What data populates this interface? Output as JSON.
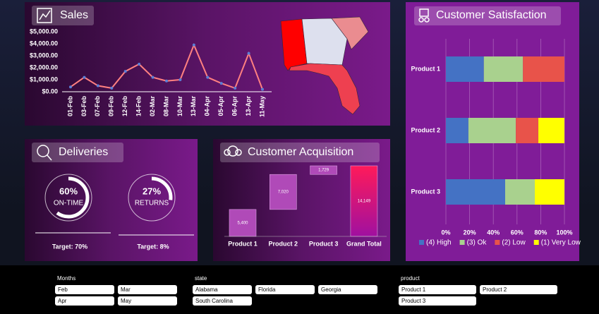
{
  "chart_data": [
    {
      "type": "line",
      "title": "Sales",
      "categories": [
        "01-Feb",
        "03-Feb",
        "07-Feb",
        "09-Feb",
        "12-Feb",
        "14-Feb",
        "02-Mar",
        "08-Mar",
        "10-Mar",
        "13-Mar",
        "04-Apr",
        "05-Apr",
        "06-Apr",
        "13-Apr",
        "11-May"
      ],
      "values": [
        400,
        1200,
        500,
        300,
        1700,
        2300,
        1200,
        900,
        1000,
        3900,
        1200,
        700,
        300,
        3200,
        200
      ],
      "color": "#ff8080",
      "marker_color": "#5b7fd6",
      "ylim": [
        0,
        5000
      ],
      "yticks": [
        {
          "value": 0,
          "label": "$0.00"
        },
        {
          "value": 1000,
          "label": "$1,000.00"
        },
        {
          "value": 2000,
          "label": "$2,000.00"
        },
        {
          "value": 3000,
          "label": "$3,000.00"
        },
        {
          "value": 4000,
          "label": "$4,000.00"
        },
        {
          "value": 5000,
          "label": "$5,000.00"
        }
      ]
    },
    {
      "type": "waterfall",
      "title": "Customer Acquisition",
      "categories": [
        "Product 1",
        "Product 2",
        "Product 3",
        "Grand Total"
      ],
      "values": [
        5400,
        7020,
        1729,
        14149
      ],
      "value_labels": [
        "5,400",
        "7,020",
        "1,729",
        "14,149"
      ],
      "color": "#b04ab8",
      "total_color": "#e8186c"
    },
    {
      "type": "stacked_bar_h",
      "title": "Customer Satisfaction",
      "categories": [
        "Product 1",
        "Product 2",
        "Product 3"
      ],
      "series": [
        {
          "name": "(4) High",
          "color": "#4472c4",
          "values": [
            32,
            19,
            50
          ]
        },
        {
          "name": "(3) Ok",
          "color": "#a9d18e",
          "values": [
            33,
            40,
            25
          ]
        },
        {
          "name": "(2) Low",
          "color": "#e8534a",
          "values": [
            35,
            19,
            0
          ]
        },
        {
          "name": "(1) Very Low",
          "color": "#ffff00",
          "values": [
            0,
            22,
            25
          ]
        }
      ],
      "xlim": [
        0,
        100
      ],
      "xticks": [
        {
          "value": 0,
          "label": "0%"
        },
        {
          "value": 20,
          "label": "20%"
        },
        {
          "value": 40,
          "label": "40%"
        },
        {
          "value": 60,
          "label": "60%"
        },
        {
          "value": 80,
          "label": "80%"
        },
        {
          "value": 100,
          "label": "100%"
        }
      ],
      "grid": true,
      "legend": "bottom"
    }
  ],
  "deliveries": {
    "title": "Deliveries",
    "gauges": [
      {
        "value": 60,
        "value_label": "60%",
        "label": "ON-TIME",
        "target": "Target: 70%"
      },
      {
        "value": 27,
        "value_label": "27%",
        "label": "RETURNS",
        "target": "Target: 8%"
      }
    ]
  },
  "slicers": [
    {
      "title": "Months",
      "items": [
        "Feb",
        "Mar",
        "Apr",
        "May"
      ]
    },
    {
      "title": "state",
      "items": [
        "Alabama",
        "Florida",
        "Georgia",
        "South Carolina"
      ]
    },
    {
      "title": "product",
      "items": [
        "Product 1",
        "Product 2",
        "Product 3"
      ]
    }
  ]
}
